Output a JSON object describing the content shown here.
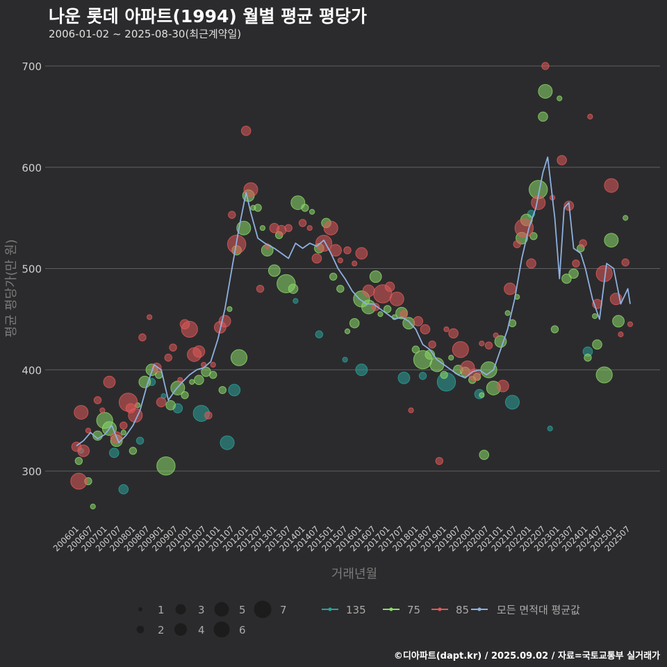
{
  "title": "나운 롯데 아파트(1994) 월별 평균 평당가",
  "subtitle": "2006-01-02 ~ 2025-08-30(최근계약일)",
  "footer": "©디아파트(dapt.kr) / 2025.09.02 / 자료=국토교통부 실거래가",
  "chart_data": {
    "type": "scatter",
    "xlabel": "거래년월",
    "ylabel": "평균 평당가(만 원)",
    "y_ticks": [
      300,
      400,
      500,
      600,
      700
    ],
    "ylim": [
      245,
      710
    ],
    "x_tick_labels": [
      "200601",
      "200607",
      "200701",
      "200707",
      "200801",
      "200807",
      "200901",
      "200907",
      "201001",
      "201007",
      "201101",
      "201107",
      "201201",
      "201207",
      "201301",
      "201307",
      "201401",
      "201407",
      "201501",
      "201507",
      "201601",
      "201607",
      "201701",
      "201707",
      "201801",
      "201807",
      "201901",
      "201907",
      "202001",
      "202007",
      "202101",
      "202107",
      "202201",
      "202207",
      "202301",
      "202307",
      "202401",
      "202407",
      "202501",
      "202507"
    ],
    "x_start": "2006-01",
    "x_end": "2025-08",
    "grid": true,
    "size_legend": [
      "1",
      "2",
      "3",
      "4",
      "5",
      "6",
      "7"
    ],
    "colors": {
      "135": "#2ba39a",
      "75": "#8ddb6a",
      "85": "#e05a5a",
      "avg": "#8fb1e0"
    },
    "series": [
      {
        "name": "135",
        "key": "135",
        "points": [
          [
            "2006-03",
            320
          ],
          [
            "2007-05",
            318
          ],
          [
            "2007-09",
            282
          ],
          [
            "2008-04",
            330
          ],
          [
            "2008-09",
            388
          ],
          [
            "2009-02",
            374
          ],
          [
            "2009-08",
            362
          ],
          [
            "2010-06",
            357
          ],
          [
            "2011-05",
            328
          ],
          [
            "2011-08",
            380
          ],
          [
            "2013-10",
            468
          ],
          [
            "2014-08",
            435
          ],
          [
            "2015-07",
            410
          ],
          [
            "2016-02",
            400
          ],
          [
            "2017-08",
            392
          ],
          [
            "2018-04",
            394
          ],
          [
            "2019-02",
            388
          ],
          [
            "2020-04",
            376
          ],
          [
            "2021-06",
            368
          ],
          [
            "2022-02",
            554
          ],
          [
            "2022-10",
            342
          ],
          [
            "2024-02",
            418
          ]
        ]
      },
      {
        "name": "75",
        "key": "75",
        "points": [
          [
            "2006-02",
            310
          ],
          [
            "2006-06",
            290
          ],
          [
            "2006-08",
            265
          ],
          [
            "2006-10",
            335
          ],
          [
            "2007-01",
            350
          ],
          [
            "2007-03",
            342
          ],
          [
            "2007-06",
            330
          ],
          [
            "2007-09",
            338
          ],
          [
            "2008-01",
            320
          ],
          [
            "2008-03",
            365
          ],
          [
            "2008-06",
            388
          ],
          [
            "2008-09",
            400
          ],
          [
            "2008-12",
            395
          ],
          [
            "2009-03",
            305
          ],
          [
            "2009-05",
            365
          ],
          [
            "2009-08",
            382
          ],
          [
            "2009-11",
            375
          ],
          [
            "2010-02",
            388
          ],
          [
            "2010-05",
            390
          ],
          [
            "2010-08",
            398
          ],
          [
            "2010-11",
            395
          ],
          [
            "2011-03",
            380
          ],
          [
            "2011-06",
            460
          ],
          [
            "2011-09",
            518
          ],
          [
            "2011-10",
            412
          ],
          [
            "2011-12",
            540
          ],
          [
            "2012-02",
            572
          ],
          [
            "2012-04",
            560
          ],
          [
            "2012-06",
            560
          ],
          [
            "2012-08",
            540
          ],
          [
            "2012-10",
            518
          ],
          [
            "2013-01",
            498
          ],
          [
            "2013-03",
            533
          ],
          [
            "2013-06",
            485
          ],
          [
            "2013-09",
            480
          ],
          [
            "2013-11",
            565
          ],
          [
            "2014-02",
            560
          ],
          [
            "2014-05",
            556
          ],
          [
            "2014-08",
            520
          ],
          [
            "2014-11",
            545
          ],
          [
            "2015-02",
            492
          ],
          [
            "2015-05",
            480
          ],
          [
            "2015-08",
            438
          ],
          [
            "2015-11",
            446
          ],
          [
            "2016-02",
            470
          ],
          [
            "2016-05",
            462
          ],
          [
            "2016-08",
            492
          ],
          [
            "2016-10",
            455
          ],
          [
            "2017-01",
            460
          ],
          [
            "2017-04",
            452
          ],
          [
            "2017-07",
            456
          ],
          [
            "2017-10",
            446
          ],
          [
            "2018-01",
            420
          ],
          [
            "2018-04",
            410
          ],
          [
            "2018-07",
            415
          ],
          [
            "2018-10",
            405
          ],
          [
            "2019-01",
            395
          ],
          [
            "2019-04",
            412
          ],
          [
            "2019-07",
            400
          ],
          [
            "2019-10",
            398
          ],
          [
            "2020-01",
            390
          ],
          [
            "2020-03",
            393
          ],
          [
            "2020-05",
            375
          ],
          [
            "2020-06",
            316
          ],
          [
            "2020-08",
            400
          ],
          [
            "2020-10",
            382
          ],
          [
            "2021-01",
            428
          ],
          [
            "2021-04",
            456
          ],
          [
            "2021-06",
            446
          ],
          [
            "2021-08",
            472
          ],
          [
            "2021-10",
            530
          ],
          [
            "2021-12",
            548
          ],
          [
            "2022-03",
            532
          ],
          [
            "2022-05",
            578
          ],
          [
            "2022-07",
            650
          ],
          [
            "2022-08",
            675
          ],
          [
            "2022-12",
            440
          ],
          [
            "2023-02",
            668
          ],
          [
            "2023-05",
            490
          ],
          [
            "2023-08",
            495
          ],
          [
            "2023-11",
            520
          ],
          [
            "2024-02",
            412
          ],
          [
            "2024-05",
            453
          ],
          [
            "2024-06",
            425
          ],
          [
            "2024-09",
            395
          ],
          [
            "2024-12",
            528
          ],
          [
            "2025-03",
            448
          ],
          [
            "2025-06",
            550
          ]
        ]
      },
      {
        "name": "85",
        "key": "85",
        "points": [
          [
            "2006-01",
            324
          ],
          [
            "2006-02",
            290
          ],
          [
            "2006-03",
            358
          ],
          [
            "2006-04",
            320
          ],
          [
            "2006-06",
            340
          ],
          [
            "2006-10",
            370
          ],
          [
            "2006-12",
            360
          ],
          [
            "2007-03",
            388
          ],
          [
            "2007-06",
            333
          ],
          [
            "2007-09",
            345
          ],
          [
            "2007-11",
            368
          ],
          [
            "2007-12",
            362
          ],
          [
            "2008-02",
            355
          ],
          [
            "2008-05",
            432
          ],
          [
            "2008-08",
            452
          ],
          [
            "2008-11",
            402
          ],
          [
            "2009-01",
            368
          ],
          [
            "2009-04",
            412
          ],
          [
            "2009-06",
            422
          ],
          [
            "2009-09",
            390
          ],
          [
            "2009-11",
            445
          ],
          [
            "2010-01",
            440
          ],
          [
            "2010-03",
            415
          ],
          [
            "2010-05",
            418
          ],
          [
            "2010-07",
            405
          ],
          [
            "2010-09",
            355
          ],
          [
            "2010-11",
            405
          ],
          [
            "2011-02",
            442
          ],
          [
            "2011-04",
            448
          ],
          [
            "2011-07",
            553
          ],
          [
            "2011-09",
            524
          ],
          [
            "2012-01",
            636
          ],
          [
            "2012-03",
            578
          ],
          [
            "2012-07",
            480
          ],
          [
            "2012-10",
            522
          ],
          [
            "2013-01",
            540
          ],
          [
            "2013-04",
            538
          ],
          [
            "2013-07",
            540
          ],
          [
            "2014-01",
            545
          ],
          [
            "2014-04",
            540
          ],
          [
            "2014-07",
            510
          ],
          [
            "2014-10",
            525
          ],
          [
            "2015-01",
            540
          ],
          [
            "2015-03",
            518
          ],
          [
            "2015-05",
            508
          ],
          [
            "2015-08",
            518
          ],
          [
            "2015-11",
            505
          ],
          [
            "2016-02",
            515
          ],
          [
            "2016-05",
            478
          ],
          [
            "2016-08",
            462
          ],
          [
            "2016-11",
            475
          ],
          [
            "2017-02",
            482
          ],
          [
            "2017-05",
            470
          ],
          [
            "2017-08",
            455
          ],
          [
            "2017-11",
            360
          ],
          [
            "2018-02",
            448
          ],
          [
            "2018-05",
            440
          ],
          [
            "2018-08",
            425
          ],
          [
            "2018-11",
            310
          ],
          [
            "2019-02",
            440
          ],
          [
            "2019-05",
            436
          ],
          [
            "2019-08",
            420
          ],
          [
            "2019-11",
            402
          ],
          [
            "2020-02",
            395
          ],
          [
            "2020-05",
            426
          ],
          [
            "2020-08",
            424
          ],
          [
            "2020-11",
            434
          ],
          [
            "2021-02",
            384
          ],
          [
            "2021-05",
            480
          ],
          [
            "2021-08",
            524
          ],
          [
            "2021-11",
            540
          ],
          [
            "2022-02",
            505
          ],
          [
            "2022-05",
            565
          ],
          [
            "2022-08",
            700
          ],
          [
            "2022-11",
            570
          ],
          [
            "2023-03",
            607
          ],
          [
            "2023-06",
            562
          ],
          [
            "2023-09",
            505
          ],
          [
            "2023-12",
            525
          ],
          [
            "2024-03",
            650
          ],
          [
            "2024-06",
            465
          ],
          [
            "2024-09",
            495
          ],
          [
            "2024-12",
            582
          ],
          [
            "2025-02",
            470
          ],
          [
            "2025-04",
            435
          ],
          [
            "2025-06",
            506
          ],
          [
            "2025-08",
            445
          ]
        ]
      }
    ],
    "avg_series": {
      "name": "모든 면적대 평균값",
      "points": [
        [
          "2006-01",
          325
        ],
        [
          "2006-04",
          330
        ],
        [
          "2006-07",
          338
        ],
        [
          "2006-10",
          332
        ],
        [
          "2007-01",
          336
        ],
        [
          "2007-04",
          345
        ],
        [
          "2007-07",
          328
        ],
        [
          "2007-10",
          335
        ],
        [
          "2008-01",
          345
        ],
        [
          "2008-04",
          360
        ],
        [
          "2008-07",
          385
        ],
        [
          "2008-10",
          405
        ],
        [
          "2009-01",
          400
        ],
        [
          "2009-04",
          370
        ],
        [
          "2009-07",
          380
        ],
        [
          "2009-10",
          388
        ],
        [
          "2010-01",
          395
        ],
        [
          "2010-04",
          400
        ],
        [
          "2010-07",
          402
        ],
        [
          "2010-10",
          408
        ],
        [
          "2011-01",
          430
        ],
        [
          "2011-04",
          460
        ],
        [
          "2011-07",
          500
        ],
        [
          "2011-10",
          540
        ],
        [
          "2012-01",
          575
        ],
        [
          "2012-03",
          555
        ],
        [
          "2012-06",
          530
        ],
        [
          "2012-09",
          525
        ],
        [
          "2013-01",
          520
        ],
        [
          "2013-04",
          515
        ],
        [
          "2013-07",
          510
        ],
        [
          "2013-10",
          525
        ],
        [
          "2014-01",
          520
        ],
        [
          "2014-04",
          525
        ],
        [
          "2014-07",
          522
        ],
        [
          "2014-10",
          528
        ],
        [
          "2015-01",
          515
        ],
        [
          "2015-04",
          500
        ],
        [
          "2015-07",
          490
        ],
        [
          "2015-10",
          478
        ],
        [
          "2016-01",
          470
        ],
        [
          "2016-04",
          465
        ],
        [
          "2016-07",
          465
        ],
        [
          "2016-10",
          460
        ],
        [
          "2017-01",
          455
        ],
        [
          "2017-04",
          450
        ],
        [
          "2017-07",
          452
        ],
        [
          "2017-10",
          448
        ],
        [
          "2018-01",
          440
        ],
        [
          "2018-04",
          425
        ],
        [
          "2018-07",
          420
        ],
        [
          "2018-10",
          410
        ],
        [
          "2019-01",
          405
        ],
        [
          "2019-04",
          400
        ],
        [
          "2019-07",
          395
        ],
        [
          "2019-10",
          392
        ],
        [
          "2020-01",
          398
        ],
        [
          "2020-04",
          400
        ],
        [
          "2020-07",
          395
        ],
        [
          "2020-10",
          400
        ],
        [
          "2021-01",
          420
        ],
        [
          "2021-04",
          440
        ],
        [
          "2021-07",
          470
        ],
        [
          "2021-10",
          510
        ],
        [
          "2022-01",
          540
        ],
        [
          "2022-04",
          560
        ],
        [
          "2022-07",
          595
        ],
        [
          "2022-09",
          610
        ],
        [
          "2022-12",
          550
        ],
        [
          "2023-02",
          490
        ],
        [
          "2023-04",
          560
        ],
        [
          "2023-06",
          565
        ],
        [
          "2023-08",
          520
        ],
        [
          "2023-11",
          515
        ],
        [
          "2024-01",
          500
        ],
        [
          "2024-04",
          470
        ],
        [
          "2024-07",
          450
        ],
        [
          "2024-10",
          505
        ],
        [
          "2025-01",
          500
        ],
        [
          "2025-04",
          465
        ],
        [
          "2025-07",
          480
        ],
        [
          "2025-08",
          465
        ]
      ]
    },
    "legend": {
      "sizes": [
        "1",
        "2",
        "3",
        "4",
        "5",
        "6",
        "7"
      ],
      "areas": [
        "135",
        "75",
        "85"
      ],
      "avg_label": "모든 면적대 평균값"
    }
  }
}
